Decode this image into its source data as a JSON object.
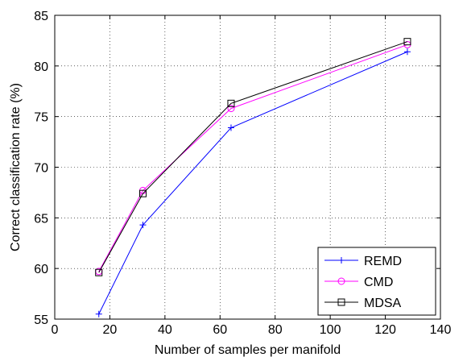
{
  "chart_data": {
    "type": "line",
    "xlabel": "Number of samples per manifold",
    "ylabel": "Correct classification rate (%)",
    "xlim": [
      0,
      140
    ],
    "ylim": [
      55,
      85
    ],
    "xticks": [
      0,
      20,
      40,
      60,
      80,
      100,
      120,
      140
    ],
    "yticks": [
      55,
      60,
      65,
      70,
      75,
      80,
      85
    ],
    "grid": true,
    "legend_position": "bottom-right",
    "x": [
      16,
      32,
      64,
      128
    ],
    "series": [
      {
        "name": "REMD",
        "values": [
          55.5,
          64.3,
          73.9,
          81.4
        ],
        "color": "#0000ff",
        "marker": "plus"
      },
      {
        "name": "CMD",
        "values": [
          59.7,
          67.7,
          75.8,
          82.1
        ],
        "color": "#ff00ff",
        "marker": "circle"
      },
      {
        "name": "MDSA",
        "values": [
          59.6,
          67.4,
          76.3,
          82.4
        ],
        "color": "#000000",
        "marker": "square"
      }
    ]
  }
}
